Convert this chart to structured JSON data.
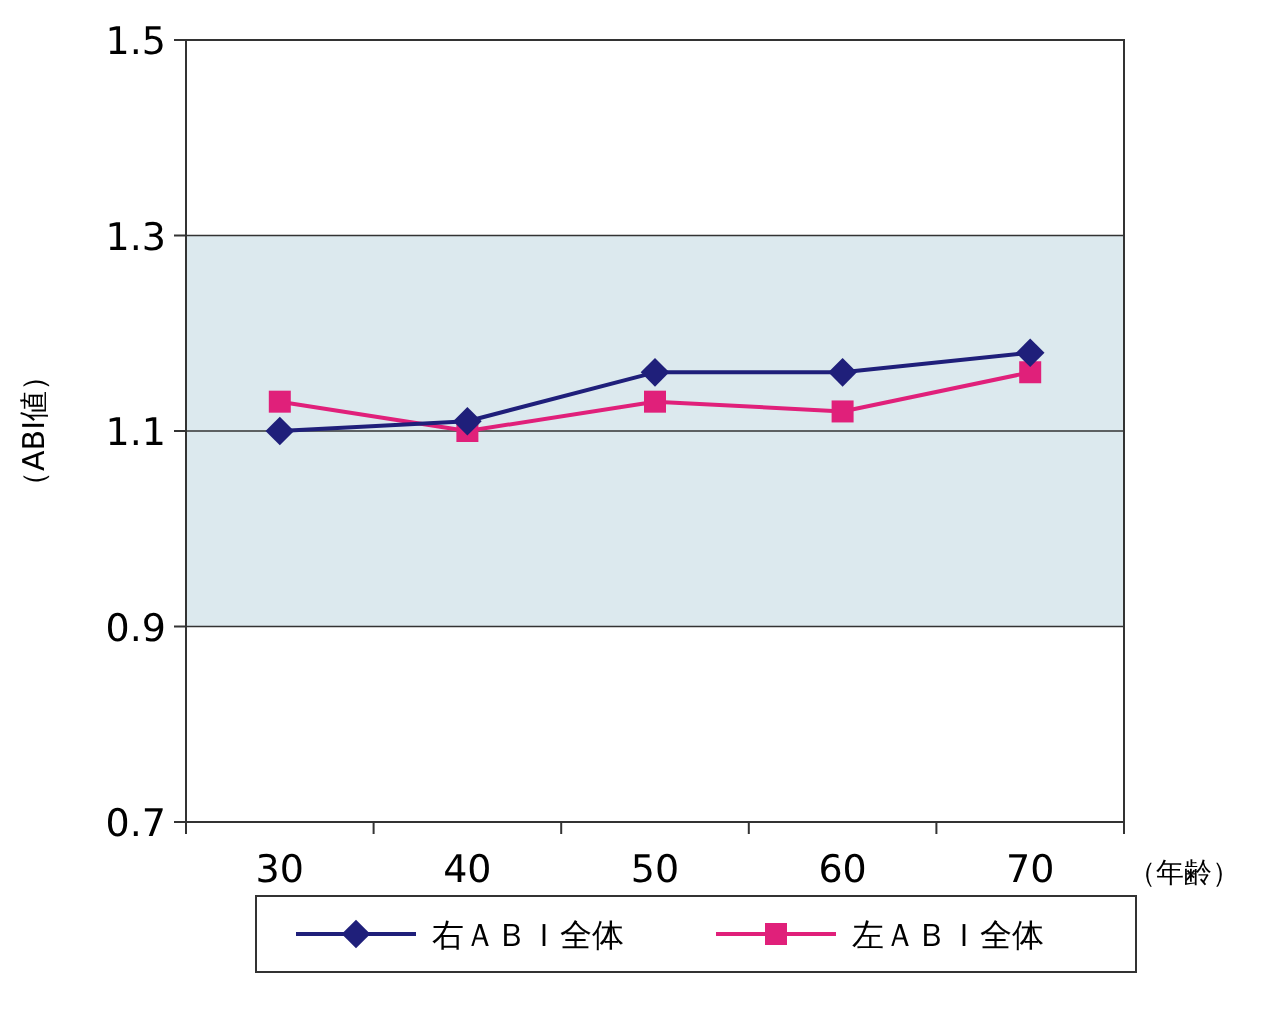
{
  "chart_data": {
    "type": "line",
    "xlabel": "（年齢）",
    "ylabel": "（ABI値）",
    "categories": [
      "30",
      "40",
      "50",
      "60",
      "70"
    ],
    "series": [
      {
        "name": "右ＡＢＩ全体",
        "color": "#1f1f7a",
        "marker": "diamond",
        "values": [
          1.1,
          1.11,
          1.16,
          1.16,
          1.18
        ]
      },
      {
        "name": "左ＡＢＩ全体",
        "color": "#e0207a",
        "marker": "square",
        "values": [
          1.13,
          1.1,
          1.13,
          1.12,
          1.16
        ]
      }
    ],
    "ylim": [
      0.7,
      1.5
    ],
    "yticks": [
      0.7,
      0.9,
      1.1,
      1.3,
      1.5
    ],
    "grid": "y",
    "legend": "bottom",
    "line_style": "solid",
    "bands": [
      {
        "axis": "y",
        "from": 0.9,
        "to": 1.3,
        "color": "#dce9ee"
      }
    ]
  }
}
